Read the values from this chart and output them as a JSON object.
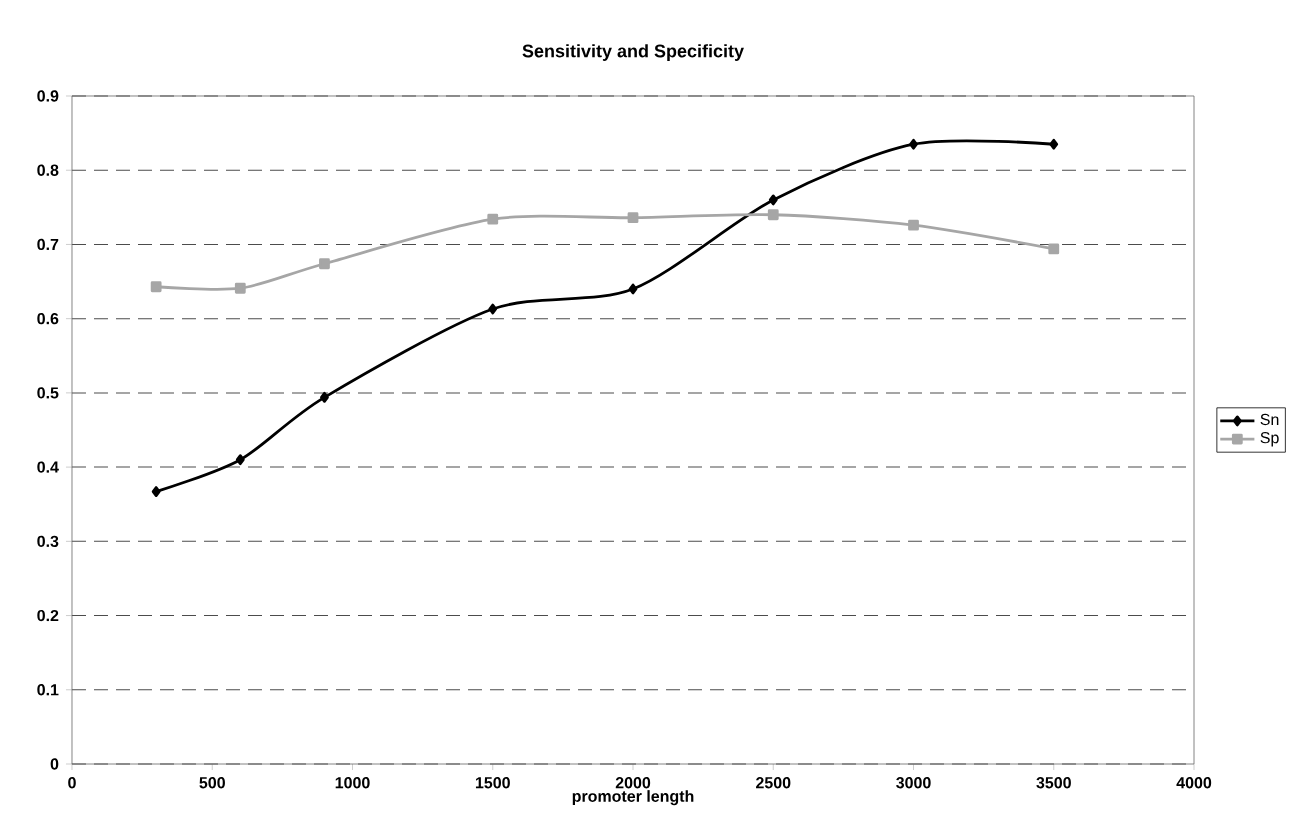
{
  "chart_data": {
    "type": "line",
    "title": "Sensitivity and Specificity",
    "xlabel": "promoter length",
    "x": [
      300,
      600,
      900,
      1500,
      2000,
      2500,
      3000,
      3500
    ],
    "series": [
      {
        "name": "Sn",
        "color": "#000000",
        "marker": "diamond",
        "values": [
          0.367,
          0.41,
          0.494,
          0.613,
          0.64,
          0.76,
          0.835,
          0.835
        ]
      },
      {
        "name": "Sp",
        "color": "#a6a6a6",
        "marker": "square",
        "values": [
          0.643,
          0.641,
          0.674,
          0.734,
          0.736,
          0.74,
          0.726,
          0.694
        ]
      }
    ],
    "xlim": [
      0,
      4000
    ],
    "xticks": [
      0,
      500,
      1000,
      1500,
      2000,
      2500,
      3000,
      3500,
      4000
    ],
    "ylim": [
      0,
      0.9
    ],
    "yticks": [
      0,
      0.1,
      0.2,
      0.3,
      0.4,
      0.5,
      0.6,
      0.7,
      0.8,
      0.9
    ],
    "grid": "y",
    "legend": "right",
    "line_style": "solid"
  }
}
